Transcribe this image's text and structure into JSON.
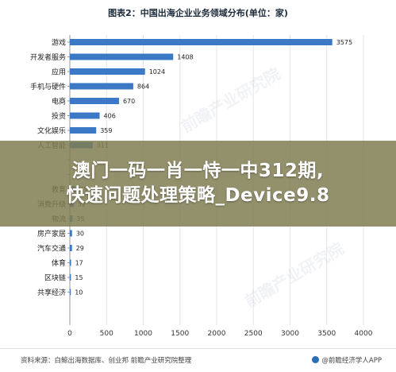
{
  "chart_data": {
    "type": "bar",
    "orientation": "horizontal",
    "title": "图表2：中国出海企业业务领域分布(单位：家)",
    "categories": [
      "游戏",
      "开发者服务",
      "应用",
      "手机与硬件",
      "电商",
      "投资",
      "文化娱乐",
      "人工智能",
      "",
      "",
      "教育",
      "消费升级",
      "物流",
      "房产家居",
      "汽车交通",
      "体育",
      "区块链",
      "共享经济"
    ],
    "values": [
      3575,
      1408,
      1024,
      864,
      670,
      406,
      359,
      311,
      null,
      null,
      75,
      52,
      35,
      30,
      29,
      17,
      15,
      10
    ],
    "xlim": [
      0,
      4000
    ],
    "xticks": [
      0,
      500,
      1000,
      1500,
      2000,
      2500,
      3000,
      3500,
      4000
    ],
    "bar_color": "#3b78c6",
    "grid": true,
    "legend": "none"
  },
  "banner": {
    "line1": "澳门一码一肖一恃一中312期,",
    "line2": "快速问题处理策略_Device9.8"
  },
  "footer": {
    "source": "资料来源：白鲸出海数据库、创业邦  前瞻产业研究院整理",
    "brand": "@前瞻经济学人APP"
  },
  "watermark": "前瞻产业研究院",
  "colors": {
    "banner_bg": "#807c52",
    "bar": "#3b78c6",
    "text": "#1a2a3a"
  }
}
